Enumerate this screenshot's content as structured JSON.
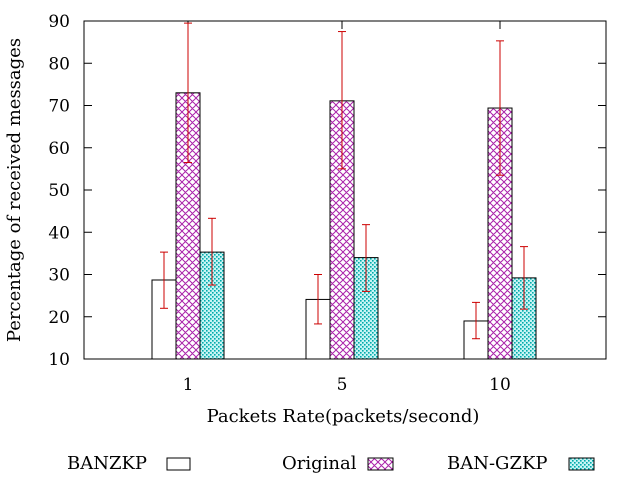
{
  "chart_data": {
    "type": "bar",
    "title": "",
    "xlabel": "Packets Rate(packets/second)",
    "ylabel": "Percentage of received messages",
    "ylim": [
      10,
      90
    ],
    "yticks": [
      "10",
      "20",
      "30",
      "40",
      "50",
      "60",
      "70",
      "80",
      "90"
    ],
    "categories": [
      "1",
      "5",
      "10"
    ],
    "grid": false,
    "legend_position": "bottom",
    "series": [
      {
        "name": "BANZKP",
        "pattern": "plain",
        "fill": "#ffffff",
        "values": [
          28.7,
          24.1,
          19.0
        ],
        "err_low": [
          22.0,
          18.3,
          14.8
        ],
        "err_high": [
          35.3,
          30.0,
          23.4
        ]
      },
      {
        "name": "Original",
        "pattern": "crosshatch",
        "fill": "#aa22aa",
        "values": [
          73.0,
          71.1,
          69.4
        ],
        "err_low": [
          56.5,
          55.0,
          53.5
        ],
        "err_high": [
          89.5,
          87.5,
          85.3
        ]
      },
      {
        "name": "BAN-GZKP",
        "pattern": "dots",
        "fill": "#00aaaa",
        "values": [
          35.3,
          34.0,
          29.2
        ],
        "err_low": [
          27.5,
          26.0,
          21.8
        ],
        "err_high": [
          43.3,
          41.8,
          36.6
        ]
      }
    ],
    "error_bar_color": "#cc0000",
    "axis_color": "#000000"
  }
}
